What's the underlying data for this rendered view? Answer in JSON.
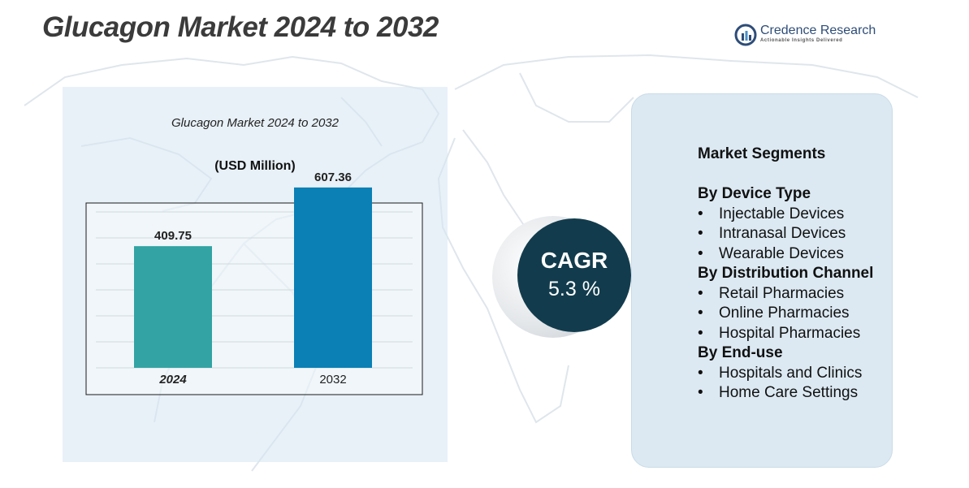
{
  "header": {
    "title": "Glucagon Market 2024 to 2032"
  },
  "logo": {
    "name": "Credence Research",
    "tagline": "Actionable Insights Delivered"
  },
  "chart_data": {
    "type": "bar",
    "title": "Glucagon Market 2024 to 2032",
    "subtitle": "(USD Million)",
    "categories": [
      "2024",
      "2032"
    ],
    "values": [
      409.75,
      607.36
    ],
    "data_labels": [
      "409.75",
      "607.36"
    ],
    "colors": [
      "#33a3a3",
      "#0a80b5"
    ],
    "ylim": [
      0,
      700
    ],
    "grid": true,
    "legend": "none"
  },
  "cagr": {
    "label": "CAGR",
    "value": "5.3 %"
  },
  "segments": {
    "heading": "Market Segments",
    "groups": [
      {
        "title": "By Device Type",
        "items": [
          "Injectable Devices",
          "Intranasal Devices",
          "Wearable Devices"
        ]
      },
      {
        "title": "By Distribution Channel",
        "items": [
          "Retail Pharmacies",
          "Online Pharmacies",
          "Hospital Pharmacies"
        ]
      },
      {
        "title": "By End-use",
        "items": [
          "Hospitals and Clinics",
          "Home Care Settings"
        ]
      }
    ]
  },
  "theme": {
    "map_color": "#dfe6ec",
    "dark_teal": "#123c4d"
  }
}
